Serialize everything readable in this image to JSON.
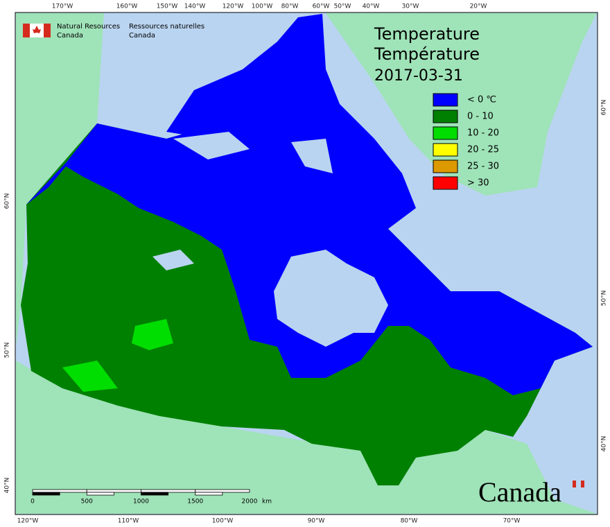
{
  "header": {
    "org_en": [
      "Natural Resources",
      "Canada"
    ],
    "org_fr": [
      "Ressources naturelles",
      "Canada"
    ]
  },
  "title": [
    "Temperature",
    "Température",
    "2017-03-31"
  ],
  "legend": [
    {
      "label": "< 0 ℃",
      "color": "#0000ff"
    },
    {
      "label": "0 - 10",
      "color": "#008000"
    },
    {
      "label": "10 - 20",
      "color": "#00dd00"
    },
    {
      "label": "20 - 25",
      "color": "#ffff00"
    },
    {
      "label": "25 - 30",
      "color": "#dd9900"
    },
    {
      "label": "> 30",
      "color": "#ff0000"
    }
  ],
  "graticule": {
    "top": [
      "170°W",
      "160°W",
      "150°W",
      "140°W",
      "120°W",
      "100°W",
      "80°W",
      "60°W",
      "50°W",
      "40°W",
      "30°W",
      "20°W"
    ],
    "bottom": [
      "120°W",
      "110°W",
      "100°W",
      "90°W",
      "80°W",
      "70°W"
    ],
    "left": [
      "60°N",
      "50°N",
      "40°N"
    ],
    "right": [
      "60°N",
      "50°N",
      "40°N"
    ]
  },
  "scale_bar": {
    "ticks": [
      "0",
      "500",
      "1000",
      "1500",
      "2000"
    ],
    "unit": "km"
  },
  "wordmark": "Canada"
}
